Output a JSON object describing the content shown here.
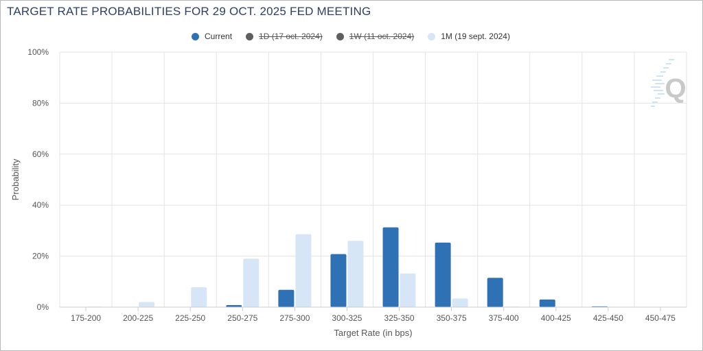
{
  "title": "TARGET RATE PROBABILITIES FOR 29 OCT. 2025 FED MEETING",
  "colors": {
    "current": "#2e72b5",
    "one_day": "#5f5f5f",
    "one_week": "#5f5f5f",
    "one_month": "#d6e6f6",
    "grid": "#e3e3e3",
    "text": "#555555"
  },
  "legend": [
    {
      "key": "current",
      "label": "Current",
      "hidden": false
    },
    {
      "key": "one_day",
      "label": "1D (17 oct. 2024)",
      "hidden": true
    },
    {
      "key": "one_week",
      "label": "1W (11 oct. 2024)",
      "hidden": true
    },
    {
      "key": "one_month",
      "label": "1M (19 sept. 2024)",
      "hidden": false
    }
  ],
  "watermark": {
    "letter": "Q",
    "icon": "quikstrike-logo-icon"
  },
  "chart_data": {
    "type": "bar",
    "xlabel": "Target Rate (in bps)",
    "ylabel": "Probability",
    "ylim": [
      0,
      100
    ],
    "yticks": [
      "0%",
      "20%",
      "40%",
      "60%",
      "80%",
      "100%"
    ],
    "grid": true,
    "legend_position": "top-center",
    "categories": [
      "175-200",
      "200-225",
      "225-250",
      "250-275",
      "275-300",
      "300-325",
      "325-350",
      "350-375",
      "375-400",
      "400-425",
      "425-450",
      "450-475"
    ],
    "series": [
      {
        "name": "Current",
        "values": [
          0,
          0,
          0,
          0.8,
          6.8,
          20.8,
          31.3,
          25.3,
          11.5,
          3.0,
          0.3,
          0
        ]
      },
      {
        "name": "1M (19 sept. 2024)",
        "values": [
          0.2,
          2.0,
          7.8,
          19.0,
          28.6,
          26.0,
          13.2,
          3.4,
          0.2,
          0,
          0,
          0
        ]
      }
    ]
  }
}
